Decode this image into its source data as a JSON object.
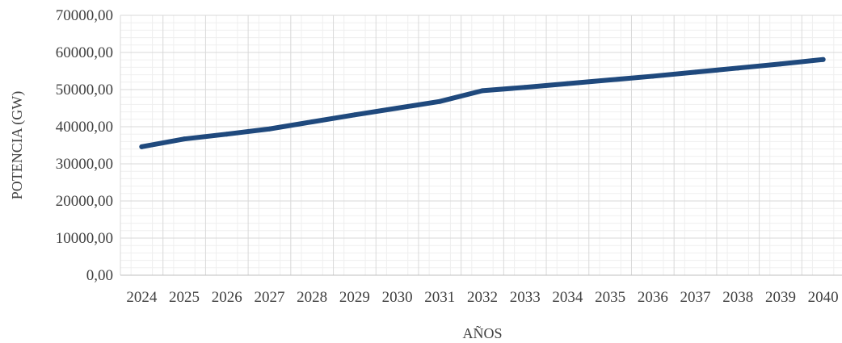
{
  "chart_data": {
    "type": "line",
    "title": "",
    "xlabel": "AÑOS",
    "ylabel": "POTENCIA (GW)",
    "ylim": [
      0,
      70000
    ],
    "y_ticks": [
      "0,00",
      "10000,00",
      "20000,00",
      "30000,00",
      "40000,00",
      "50000,00",
      "60000,00",
      "70000,00"
    ],
    "categories": [
      "2024",
      "2025",
      "2026",
      "2027",
      "2028",
      "2029",
      "2030",
      "2031",
      "2032",
      "2033",
      "2034",
      "2035",
      "2036",
      "2037",
      "2038",
      "2039",
      "2040"
    ],
    "series": [
      {
        "values": [
          34600,
          36700,
          38000,
          39400,
          41300,
          43200,
          45000,
          46800,
          49700,
          50600,
          51600,
          52600,
          53600,
          54700,
          55800,
          56900,
          58100
        ],
        "color": "#1f497d"
      }
    ],
    "grid": {
      "major": true,
      "minor": true
    },
    "legend": "none"
  }
}
